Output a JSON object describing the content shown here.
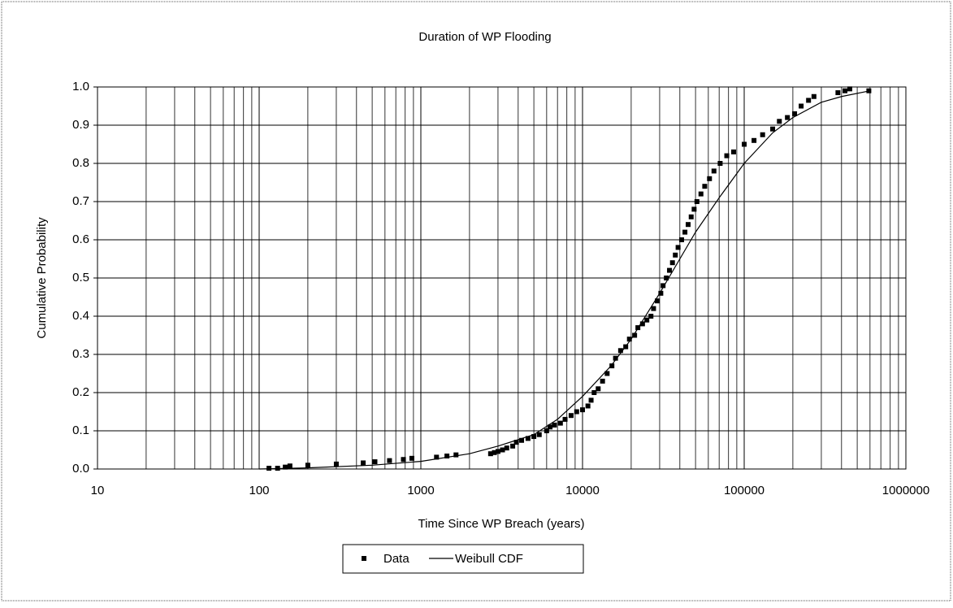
{
  "chart_data": {
    "type": "scatter",
    "title": "Duration of WP Flooding",
    "x_label": "Time Since WP Breach (years)",
    "y_label": "Cumulative Probability",
    "x_scale": "log",
    "grid": true,
    "legend": "bottom",
    "xlim": [
      10,
      1000000
    ],
    "ylim": [
      0,
      1
    ],
    "xticks": [
      10,
      100,
      1000,
      10000,
      100000,
      1000000
    ],
    "xminorticks": [
      20,
      30,
      40,
      50,
      60,
      70,
      80,
      90,
      200,
      300,
      400,
      500,
      600,
      700,
      800,
      900,
      2000,
      3000,
      4000,
      5000,
      6000,
      7000,
      8000,
      9000,
      20000,
      30000,
      40000,
      50000,
      60000,
      70000,
      80000,
      90000,
      200000,
      300000,
      400000,
      500000,
      600000,
      700000,
      800000,
      900000
    ],
    "yticks": [
      {
        "value": 0,
        "label": "0.0"
      },
      0.1,
      0.2,
      0.3,
      0.4,
      0.5,
      0.6,
      0.7,
      0.8,
      0.9,
      {
        "value": 1,
        "label": "1.0"
      }
    ],
    "series": [
      {
        "name": "Data",
        "type": "scatter",
        "color": "#000000",
        "x": [
          115,
          130,
          145,
          155,
          200,
          300,
          440,
          520,
          640,
          780,
          880,
          1250,
          1450,
          1650,
          2700,
          2850,
          3000,
          3200,
          3400,
          3700,
          3900,
          4200,
          4600,
          5000,
          5400,
          6000,
          6300,
          6700,
          7300,
          7800,
          8500,
          9200,
          10000,
          10800,
          11300,
          11800,
          12500,
          13300,
          14200,
          15200,
          16000,
          17200,
          18500,
          19500,
          21000,
          22000,
          23500,
          25000,
          26500,
          27500,
          29000,
          30500,
          31500,
          33000,
          34500,
          36000,
          37500,
          39000,
          41000,
          43000,
          45000,
          47000,
          49000,
          51000,
          54000,
          57000,
          61000,
          65000,
          71000,
          78000,
          86000,
          100000,
          115000,
          130000,
          150000,
          165000,
          185000,
          205000,
          225000,
          250000,
          270000,
          380000,
          420000,
          450000,
          590000
        ],
        "values": [
          0.002,
          0.002,
          0.005,
          0.008,
          0.01,
          0.013,
          0.016,
          0.019,
          0.022,
          0.025,
          0.028,
          0.031,
          0.034,
          0.037,
          0.04,
          0.043,
          0.046,
          0.05,
          0.055,
          0.06,
          0.07,
          0.075,
          0.08,
          0.085,
          0.09,
          0.1,
          0.11,
          0.115,
          0.12,
          0.13,
          0.14,
          0.15,
          0.155,
          0.165,
          0.18,
          0.2,
          0.21,
          0.23,
          0.25,
          0.27,
          0.29,
          0.31,
          0.32,
          0.34,
          0.35,
          0.37,
          0.38,
          0.39,
          0.4,
          0.42,
          0.44,
          0.46,
          0.48,
          0.5,
          0.52,
          0.54,
          0.56,
          0.58,
          0.6,
          0.62,
          0.64,
          0.66,
          0.68,
          0.7,
          0.72,
          0.74,
          0.76,
          0.78,
          0.8,
          0.82,
          0.83,
          0.85,
          0.86,
          0.875,
          0.89,
          0.91,
          0.92,
          0.93,
          0.95,
          0.965,
          0.975,
          0.985,
          0.99,
          0.995,
          0.99
        ]
      },
      {
        "name": "Weibull CDF",
        "type": "line",
        "color": "#000000",
        "x": [
          100,
          200,
          500,
          1000,
          2000,
          3000,
          5000,
          7000,
          10000,
          15000,
          20000,
          30000,
          40000,
          50000,
          70000,
          100000,
          150000,
          200000,
          300000,
          400000,
          600000
        ],
        "values": [
          0,
          0.003,
          0.01,
          0.02,
          0.04,
          0.06,
          0.09,
          0.13,
          0.19,
          0.27,
          0.34,
          0.46,
          0.55,
          0.62,
          0.71,
          0.8,
          0.88,
          0.92,
          0.96,
          0.975,
          0.99
        ]
      }
    ]
  }
}
